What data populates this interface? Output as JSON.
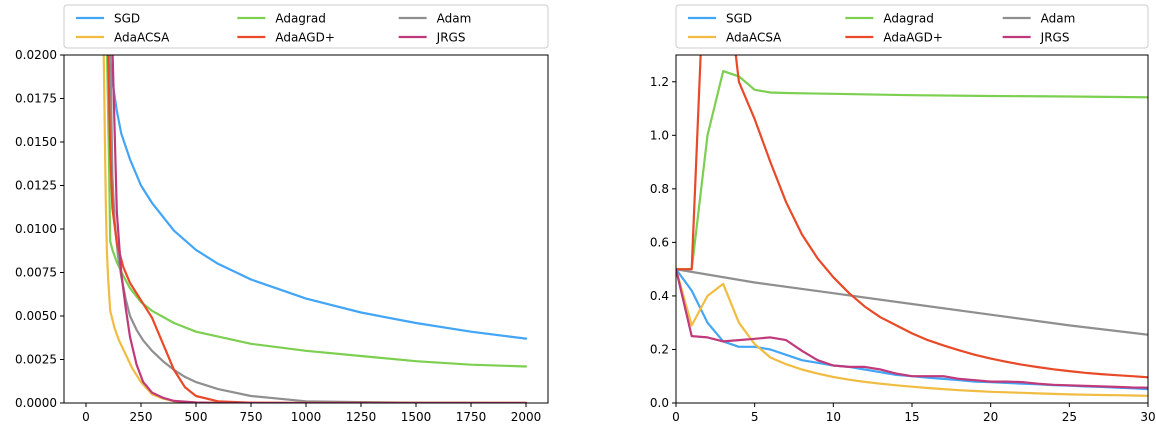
{
  "chart_data": [
    {
      "type": "line",
      "xlim": [
        -100,
        2100
      ],
      "ylim": [
        0,
        0.02
      ],
      "xticks": [
        0,
        250,
        500,
        750,
        1000,
        1250,
        1500,
        1750,
        2000
      ],
      "xtick_labels": [
        "0",
        "250",
        "500",
        "750",
        "1000",
        "1250",
        "1500",
        "1750",
        "2000"
      ],
      "yticks": [
        0,
        0.0025,
        0.005,
        0.0075,
        0.01,
        0.0125,
        0.015,
        0.0175,
        0.02
      ],
      "ytick_labels": [
        "0.0000",
        "0.0025",
        "0.0050",
        "0.0075",
        "0.0100",
        "0.0125",
        "0.0150",
        "0.0175",
        "0.0200"
      ],
      "legend": "top (above plot), 3 columns",
      "grid": false,
      "series": [
        {
          "name": "SGD",
          "color": "#42a5f5",
          "x": [
            105,
            120,
            140,
            160,
            200,
            250,
            300,
            400,
            500,
            600,
            750,
            1000,
            1250,
            1500,
            1750,
            2000
          ],
          "y": [
            0.0205,
            0.0185,
            0.0168,
            0.0155,
            0.014,
            0.0125,
            0.0115,
            0.0099,
            0.0088,
            0.008,
            0.0071,
            0.006,
            0.0052,
            0.0046,
            0.0041,
            0.0037
          ]
        },
        {
          "name": "Adagrad",
          "color": "#7ccf50",
          "x": [
            95,
            105,
            110,
            120,
            140,
            170,
            200,
            250,
            300,
            400,
            500,
            750,
            1000,
            1250,
            1500,
            1750,
            2000
          ],
          "y": [
            0.0205,
            0.0135,
            0.0093,
            0.0088,
            0.0081,
            0.0073,
            0.0066,
            0.0058,
            0.0053,
            0.0046,
            0.0041,
            0.0034,
            0.003,
            0.0027,
            0.0024,
            0.0022,
            0.0021
          ]
        },
        {
          "name": "Adam",
          "color": "#8f8f8f",
          "x": [
            110,
            120,
            130,
            145,
            160,
            180,
            200,
            230,
            260,
            300,
            350,
            400,
            450,
            500,
            600,
            750,
            1000,
            1250,
            1500,
            1750,
            2000
          ],
          "y": [
            0.0205,
            0.013,
            0.0105,
            0.0085,
            0.0073,
            0.006,
            0.005,
            0.0042,
            0.0036,
            0.003,
            0.0024,
            0.0019,
            0.0015,
            0.0012,
            0.0008,
            0.0004,
            0.0001,
            5e-05,
            2e-05,
            1e-05,
            0.0
          ]
        },
        {
          "name": "AdaACSA",
          "color": "#f0bc42",
          "x": [
            80,
            90,
            95,
            100,
            110,
            130,
            150,
            180,
            210,
            250,
            300,
            350,
            400,
            500,
            750,
            1000,
            1500,
            2000
          ],
          "y": [
            0.0205,
            0.0115,
            0.0087,
            0.0073,
            0.0053,
            0.0043,
            0.0036,
            0.0028,
            0.002,
            0.0012,
            0.0005,
            0.00025,
            0.0001,
            3e-05,
            0.0,
            0.0,
            0.0,
            0.0
          ]
        },
        {
          "name": "AdaAGD+",
          "color": "#e84a27",
          "x": [
            100,
            110,
            120,
            140,
            170,
            200,
            250,
            300,
            350,
            400,
            450,
            500,
            600,
            750,
            1000,
            1500,
            2000
          ],
          "y": [
            0.0205,
            0.0145,
            0.0112,
            0.0092,
            0.0078,
            0.0069,
            0.0059,
            0.0049,
            0.0034,
            0.0019,
            0.0009,
            0.0004,
            0.0001,
            2e-05,
            0.0,
            0.0,
            0.0
          ]
        },
        {
          "name": "JRGS",
          "color": "#c0397a",
          "x": [
            120,
            140,
            160,
            180,
            200,
            230,
            260,
            300,
            350,
            400,
            500,
            600,
            750,
            1000,
            1500,
            2000
          ],
          "y": [
            0.0205,
            0.011,
            0.0075,
            0.0055,
            0.0038,
            0.0022,
            0.0012,
            0.0006,
            0.0003,
            0.00012,
            3e-05,
            0.0,
            0.0,
            0.0,
            0.0,
            0.0
          ]
        }
      ]
    },
    {
      "type": "line",
      "xlim": [
        0,
        30
      ],
      "ylim": [
        0,
        1.3
      ],
      "xticks": [
        0,
        5,
        10,
        15,
        20,
        25,
        30
      ],
      "xtick_labels": [
        "0",
        "5",
        "10",
        "15",
        "20",
        "25",
        "30"
      ],
      "yticks": [
        0,
        0.2,
        0.4,
        0.6,
        0.8,
        1.0,
        1.2
      ],
      "ytick_labels": [
        "0.0",
        "0.2",
        "0.4",
        "0.6",
        "0.8",
        "1.0",
        "1.2"
      ],
      "legend": "top (above plot), 3 columns",
      "grid": false,
      "series": [
        {
          "name": "SGD",
          "color": "#42a5f5",
          "x": [
            0,
            1,
            2,
            3,
            4,
            5,
            6,
            7,
            8,
            9,
            10,
            11,
            12,
            13,
            14,
            15,
            16,
            17,
            18,
            19,
            20,
            21,
            22,
            23,
            24,
            25,
            26,
            27,
            28,
            29,
            30
          ],
          "y": [
            0.5,
            0.42,
            0.3,
            0.23,
            0.21,
            0.21,
            0.2,
            0.18,
            0.16,
            0.15,
            0.14,
            0.135,
            0.125,
            0.115,
            0.105,
            0.1,
            0.095,
            0.09,
            0.085,
            0.08,
            0.078,
            0.075,
            0.072,
            0.07,
            0.067,
            0.065,
            0.062,
            0.06,
            0.057,
            0.055,
            0.052
          ]
        },
        {
          "name": "Adagrad",
          "color": "#7ccf50",
          "x": [
            0,
            1,
            2,
            3,
            4,
            5,
            6,
            7,
            8,
            10,
            15,
            20,
            25,
            30
          ],
          "y": [
            0.5,
            0.5,
            1.0,
            1.24,
            1.22,
            1.17,
            1.16,
            1.158,
            1.157,
            1.155,
            1.15,
            1.147,
            1.145,
            1.142
          ]
        },
        {
          "name": "Adam",
          "color": "#8f8f8f",
          "x": [
            0,
            5,
            10,
            15,
            20,
            25,
            30
          ],
          "y": [
            0.5,
            0.45,
            0.41,
            0.37,
            0.33,
            0.29,
            0.255
          ]
        },
        {
          "name": "AdaACSA",
          "color": "#f0bc42",
          "x": [
            0,
            1,
            2,
            3,
            4,
            5,
            6,
            7,
            8,
            9,
            10,
            11,
            12,
            13,
            14,
            15,
            16,
            17,
            18,
            19,
            20,
            21,
            22,
            23,
            24,
            25,
            26,
            27,
            28,
            29,
            30
          ],
          "y": [
            0.5,
            0.29,
            0.4,
            0.445,
            0.3,
            0.22,
            0.17,
            0.145,
            0.125,
            0.11,
            0.097,
            0.087,
            0.079,
            0.072,
            0.066,
            0.061,
            0.056,
            0.052,
            0.048,
            0.045,
            0.042,
            0.04,
            0.038,
            0.036,
            0.034,
            0.032,
            0.031,
            0.03,
            0.029,
            0.028,
            0.027
          ]
        },
        {
          "name": "AdaAGD+",
          "color": "#e84a27",
          "x": [
            0,
            1,
            1.6,
            3.7,
            4,
            5,
            6,
            7,
            8,
            9,
            10,
            11,
            12,
            13,
            14,
            15,
            16,
            17,
            18,
            19,
            20,
            21,
            22,
            23,
            24,
            25,
            26,
            27,
            28,
            29,
            30
          ],
          "y": [
            0.5,
            0.5,
            1.35,
            1.35,
            1.2,
            1.06,
            0.9,
            0.75,
            0.63,
            0.54,
            0.47,
            0.41,
            0.36,
            0.32,
            0.29,
            0.26,
            0.235,
            0.215,
            0.197,
            0.18,
            0.166,
            0.154,
            0.143,
            0.134,
            0.126,
            0.119,
            0.113,
            0.108,
            0.104,
            0.1,
            0.096
          ]
        },
        {
          "name": "JRGS",
          "color": "#c0397a",
          "x": [
            0,
            1,
            2,
            3,
            4,
            5,
            6,
            7,
            8,
            9,
            10,
            11,
            12,
            13,
            14,
            15,
            16,
            17,
            18,
            19,
            20,
            21,
            22,
            23,
            24,
            25,
            26,
            27,
            28,
            29,
            30
          ],
          "y": [
            0.5,
            0.25,
            0.245,
            0.23,
            0.235,
            0.24,
            0.245,
            0.235,
            0.195,
            0.16,
            0.14,
            0.135,
            0.135,
            0.125,
            0.11,
            0.1,
            0.1,
            0.1,
            0.09,
            0.085,
            0.08,
            0.08,
            0.078,
            0.072,
            0.068,
            0.066,
            0.064,
            0.062,
            0.06,
            0.058,
            0.057
          ]
        }
      ]
    }
  ]
}
